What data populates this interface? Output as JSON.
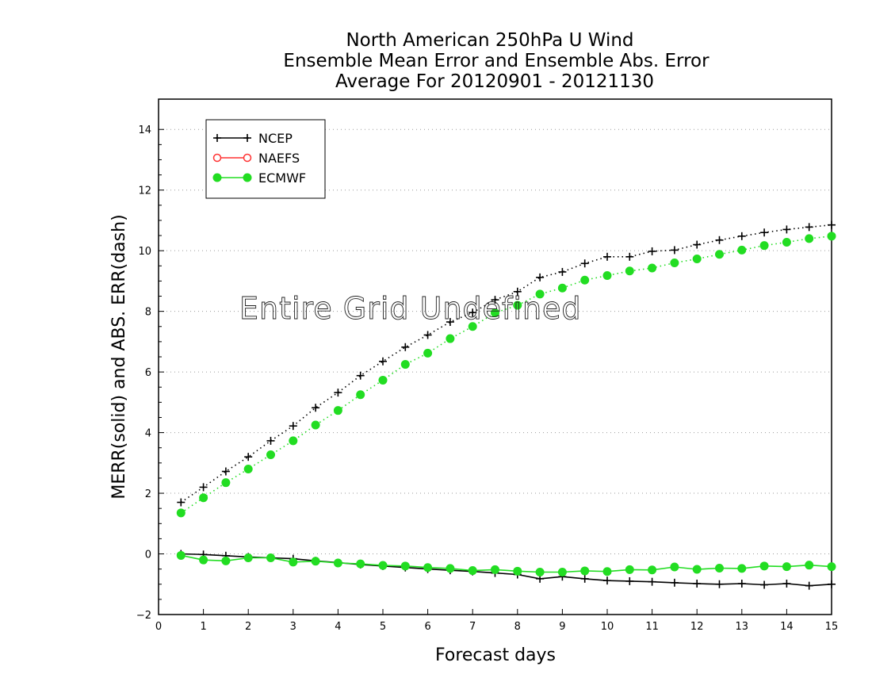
{
  "chart_data": {
    "type": "line",
    "title_lines": [
      "North American 250hPa U Wind",
      "Ensemble Mean Error and Ensemble Abs. Error",
      "Average For 20120901 - 20121130"
    ],
    "xlabel": "Forecast days",
    "ylabel": "MERR(solid) and ABS. ERR(dash)",
    "xlim": [
      0,
      15
    ],
    "ylim": [
      -2,
      15
    ],
    "xticks": [
      0,
      1,
      2,
      3,
      4,
      5,
      6,
      7,
      8,
      9,
      10,
      11,
      12,
      13,
      14,
      15
    ],
    "yticks": [
      -2,
      0,
      2,
      4,
      6,
      8,
      10,
      12,
      14
    ],
    "grid": "horizontal dotted",
    "legend_placement": "top-left",
    "annotation": "Entire Grid Undefined",
    "x": [
      0.5,
      1,
      1.5,
      2,
      2.5,
      3,
      3.5,
      4,
      4.5,
      5,
      5.5,
      6,
      6.5,
      7,
      7.5,
      8,
      8.5,
      9,
      9.5,
      10,
      10.5,
      11,
      11.5,
      12,
      12.5,
      13,
      13.5,
      14,
      14.5,
      15
    ],
    "series": [
      {
        "name": "NCEP",
        "marker": "plus",
        "color": "#000000",
        "mean_error": [
          0,
          -0.02,
          -0.06,
          -0.1,
          -0.13,
          -0.16,
          -0.23,
          -0.29,
          -0.35,
          -0.4,
          -0.45,
          -0.5,
          -0.54,
          -0.58,
          -0.63,
          -0.68,
          -0.82,
          -0.75,
          -0.82,
          -0.88,
          -0.9,
          -0.92,
          -0.95,
          -0.98,
          -1.0,
          -0.98,
          -1.02,
          -0.98,
          -1.05,
          -1.0
        ],
        "abs_error": [
          1.7,
          2.2,
          2.72,
          3.2,
          3.73,
          4.22,
          4.82,
          5.32,
          5.88,
          6.35,
          6.82,
          7.22,
          7.65,
          7.96,
          8.38,
          8.65,
          9.12,
          9.3,
          9.58,
          9.8,
          9.8,
          9.98,
          10.02,
          10.2,
          10.35,
          10.48,
          10.6,
          10.7,
          10.78,
          10.85
        ]
      },
      {
        "name": "NAEFS",
        "marker": "open-circle",
        "color": "#ff3333",
        "mean_error": [],
        "abs_error": []
      },
      {
        "name": "ECMWF",
        "marker": "filled-circle",
        "color": "#22dd22",
        "mean_error": [
          -0.05,
          -0.2,
          -0.23,
          -0.13,
          -0.13,
          -0.27,
          -0.24,
          -0.3,
          -0.33,
          -0.38,
          -0.4,
          -0.45,
          -0.48,
          -0.55,
          -0.52,
          -0.57,
          -0.6,
          -0.6,
          -0.56,
          -0.58,
          -0.52,
          -0.53,
          -0.43,
          -0.51,
          -0.47,
          -0.48,
          -0.4,
          -0.42,
          -0.37,
          -0.42
        ],
        "abs_error": [
          1.35,
          1.85,
          2.35,
          2.8,
          3.27,
          3.73,
          4.25,
          4.73,
          5.25,
          5.73,
          6.25,
          6.62,
          7.1,
          7.5,
          7.95,
          8.2,
          8.57,
          8.77,
          9.03,
          9.18,
          9.33,
          9.43,
          9.6,
          9.73,
          9.88,
          10.02,
          10.17,
          10.28,
          10.4,
          10.48
        ]
      }
    ]
  }
}
